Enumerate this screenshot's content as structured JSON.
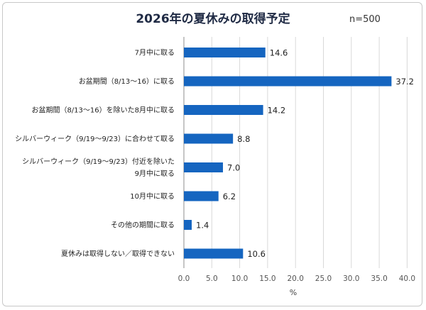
{
  "header": {
    "title": "2026年の夏休みの取得予定",
    "sample": "n=500"
  },
  "chart_data": {
    "type": "bar",
    "orientation": "horizontal",
    "title": "2026年の夏休みの取得予定",
    "xlabel": "%",
    "ylabel": "",
    "xlim": [
      0,
      40
    ],
    "xticks": [
      "0.0",
      "5.0",
      "10.0",
      "15.0",
      "20.0",
      "25.0",
      "30.0",
      "35.0",
      "40.0"
    ],
    "grid": true,
    "bar_color": "#1565c0",
    "categories": [
      [
        "7月中に取る"
      ],
      [
        "お盆期間（8/13〜16）に取る"
      ],
      [
        "お盆期間（8/13〜16）を除いた8月中に取る"
      ],
      [
        "シルバーウィーク（9/19〜9/23）に合わせて取る"
      ],
      [
        "シルバーウィーク（9/19〜9/23）付近を除いた",
        "9月中に取る"
      ],
      [
        "10月中に取る"
      ],
      [
        "その他の期間に取る"
      ],
      [
        "夏休みは取得しない／取得できない"
      ]
    ],
    "values": [
      14.6,
      37.2,
      14.2,
      8.8,
      7.0,
      6.2,
      1.4,
      10.6
    ],
    "value_labels": [
      "14.6",
      "37.2",
      "14.2",
      "8.8",
      "7.0",
      "6.2",
      "1.4",
      "10.6"
    ]
  }
}
